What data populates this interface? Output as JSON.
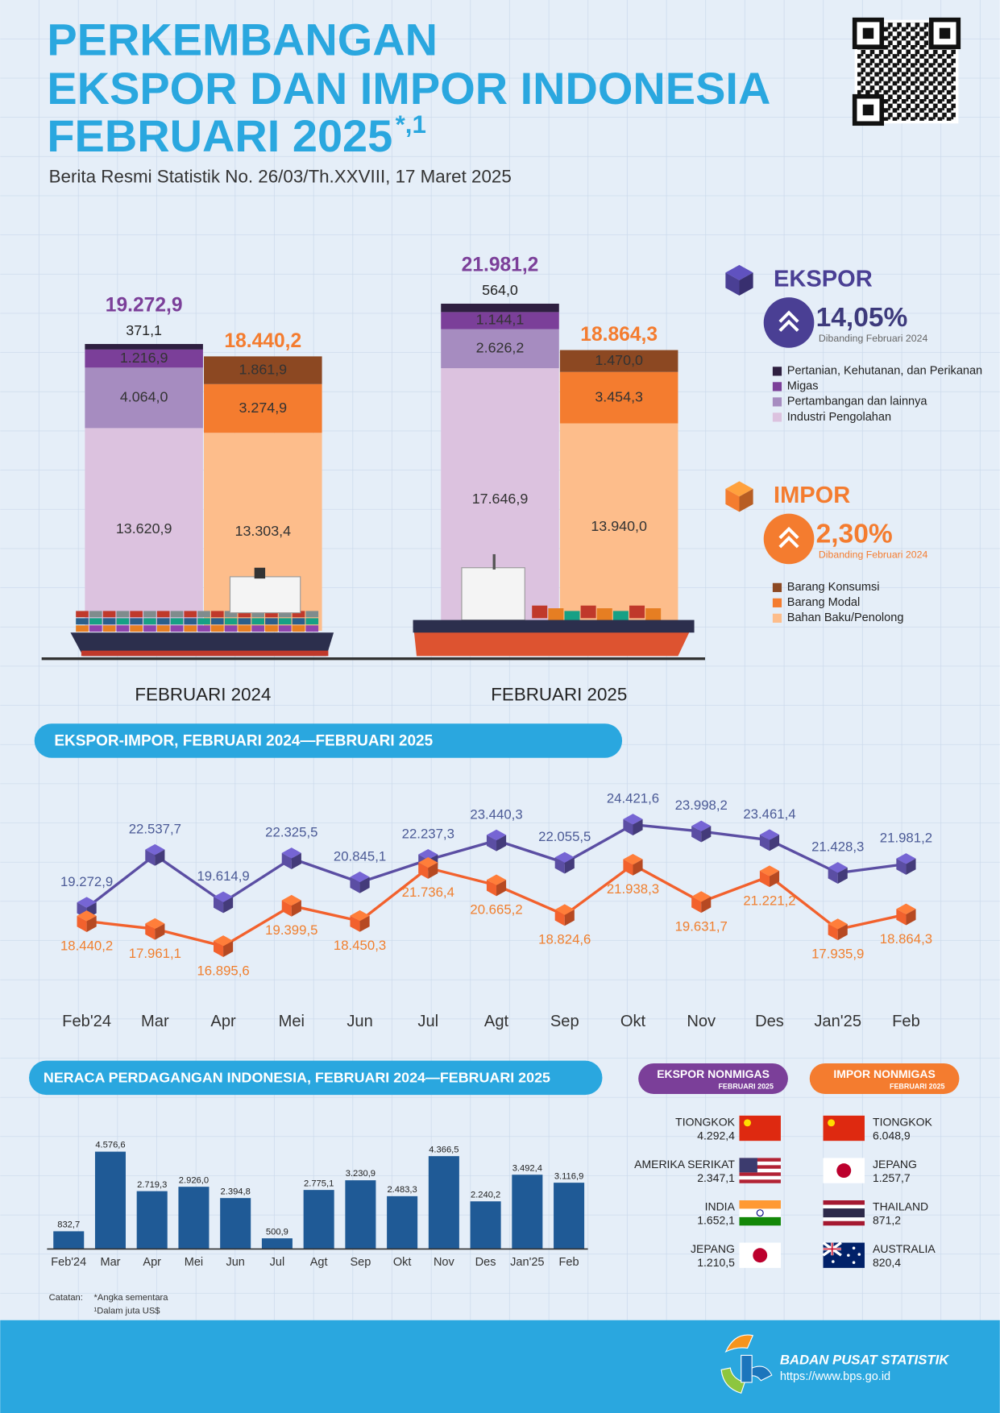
{
  "header": {
    "title": [
      "PERKEMBANGAN",
      "EKSPOR DAN IMPOR INDONESIA",
      "FEBRUARI 2025"
    ],
    "title_mark": "*,1",
    "subtitle": "Berita Resmi Statistik No. 26/03/Th.XXVIII, 17 Maret 2025"
  },
  "chart_data": [
    {
      "type": "stacked_bar",
      "categories": [
        "FEBRUARI 2024",
        "FEBRUARI 2025"
      ],
      "groups": [
        {
          "name": "EKSPOR",
          "color": "#4a3f94",
          "total_color": "#7b3f99",
          "change_label": "14,05%",
          "comparison": "Dibanding Februari 2024",
          "totals": [
            19272.9,
            21981.2
          ],
          "total_labels": [
            "19.272,9",
            "21.981,2"
          ],
          "series": [
            {
              "name": "Pertanian, Kehutanan, dan Perikanan",
              "color": "#2e1f40",
              "values": [
                371.1,
                564.0
              ],
              "value_labels": [
                "371,1",
                "564,0"
              ]
            },
            {
              "name": "Migas",
              "color": "#7b3f99",
              "values": [
                1216.9,
                1144.1
              ],
              "value_labels": [
                "1.216,9",
                "1.144,1"
              ]
            },
            {
              "name": "Pertambangan dan lainnya",
              "color": "#a68cc0",
              "values": [
                4064.0,
                2626.2
              ],
              "value_labels": [
                "4.064,0",
                "2.626,2"
              ]
            },
            {
              "name": "Industri Pengolahan",
              "color": "#dcc2df",
              "values": [
                13620.9,
                17646.9
              ],
              "value_labels": [
                "13.620,9",
                "17.646,9"
              ]
            }
          ]
        },
        {
          "name": "IMPOR",
          "color": "#f47c2f",
          "total_color": "#f47c2f",
          "change_label": "2,30%",
          "comparison": "Dibanding Februari 2024",
          "totals": [
            18440.2,
            18864.3
          ],
          "total_labels": [
            "18.440,2",
            "18.864,3"
          ],
          "series": [
            {
              "name": "Barang Konsumsi",
              "color": "#8c4822",
              "values": [
                1861.9,
                1470.0
              ],
              "value_labels": [
                "1.861,9",
                "1.470,0"
              ]
            },
            {
              "name": "Barang Modal",
              "color": "#f47c2f",
              "values": [
                3274.9,
                3454.3
              ],
              "value_labels": [
                "3.274,9",
                "3.454,3"
              ]
            },
            {
              "name": "Bahan Baku/Penolong",
              "color": "#fdbd8b",
              "values": [
                13303.4,
                13940.0
              ],
              "value_labels": [
                "13.303,4",
                "13.940,0"
              ]
            }
          ]
        }
      ]
    },
    {
      "type": "line",
      "title": "EKSPOR-IMPOR, FEBRUARI 2024—FEBRUARI 2025",
      "categories": [
        "Feb'24",
        "Mar",
        "Apr",
        "Mei",
        "Jun",
        "Jul",
        "Agt",
        "Sep",
        "Okt",
        "Nov",
        "Des",
        "Jan'25",
        "Feb"
      ],
      "series": [
        {
          "color": "#5b4ea3",
          "label_color": "#4b5a96",
          "values": [
            19272.9,
            22537.7,
            19614.9,
            22325.5,
            20845.1,
            22237.3,
            23440.3,
            22055.5,
            24421.6,
            23998.2,
            23461.4,
            21428.3,
            21981.2
          ],
          "value_labels": [
            "19.272,9",
            "22.537,7",
            "19.614,9",
            "22.325,5",
            "20.845,1",
            "22.237,3",
            "23.440,3",
            "22.055,5",
            "24.421,6",
            "23.998,2",
            "23.461,4",
            "21.428,3",
            "21.981,2"
          ]
        },
        {
          "color": "#f2612d",
          "label_color": "#f07f2e",
          "values": [
            18440.2,
            17961.1,
            16895.6,
            19399.5,
            18450.3,
            21736.4,
            20665.2,
            18824.6,
            21938.3,
            19631.7,
            21221.2,
            17935.9,
            18864.3
          ],
          "value_labels": [
            "18.440,2",
            "17.961,1",
            "16.895,6",
            "19.399,5",
            "18.450,3",
            "21.736,4",
            "20.665,2",
            "18.824,6",
            "21.938,3",
            "19.631,7",
            "21.221,2",
            "17.935,9",
            "18.864,3"
          ]
        }
      ]
    },
    {
      "type": "bar",
      "title": "NERACA PERDAGANGAN INDONESIA, FEBRUARI 2024—FEBRUARI 2025",
      "categories": [
        "Feb'24",
        "Mar",
        "Apr",
        "Mei",
        "Jun",
        "Jul",
        "Agt",
        "Sep",
        "Okt",
        "Nov",
        "Des",
        "Jan'25",
        "Feb"
      ],
      "values": [
        832.7,
        4576.6,
        2719.3,
        2926.0,
        2394.8,
        500.9,
        2775.1,
        3230.9,
        2483.3,
        4366.5,
        2240.2,
        3492.4,
        3116.9
      ],
      "value_labels": [
        "832,7",
        "4.576,6",
        "2.719,3",
        "2.926,0",
        "2.394,8",
        "500,9",
        "2.775,1",
        "3.230,9",
        "2.483,3",
        "4.366,5",
        "2.240,2",
        "3.492,4",
        "3.116,9"
      ],
      "color": "#1f5a96"
    }
  ],
  "partners": [
    {
      "title": "EKSPOR NONMIGAS",
      "period": "FEBRUARI 2025",
      "color": "#7b3f99",
      "countries": [
        {
          "name": "TIONGKOK",
          "value": "4.292,4"
        },
        {
          "name": "AMERIKA SERIKAT",
          "value": "2.347,1"
        },
        {
          "name": "INDIA",
          "value": "1.652,1"
        },
        {
          "name": "JEPANG",
          "value": "1.210,5"
        }
      ]
    },
    {
      "title": "IMPOR NONMIGAS",
      "period": "FEBRUARI 2025",
      "color": "#f47c2f",
      "countries": [
        {
          "name": "TIONGKOK",
          "value": "6.048,9"
        },
        {
          "name": "JEPANG",
          "value": "1.257,7"
        },
        {
          "name": "THAILAND",
          "value": "871,2"
        },
        {
          "name": "AUSTRALIA",
          "value": "820,4"
        }
      ]
    }
  ],
  "notes": {
    "label": "Catatan:",
    "items": [
      "*Angka sementara",
      "¹Dalam juta US$"
    ]
  },
  "footer": {
    "org": "BADAN PUSAT STATISTIK",
    "url": "https://www.bps.go.id"
  }
}
